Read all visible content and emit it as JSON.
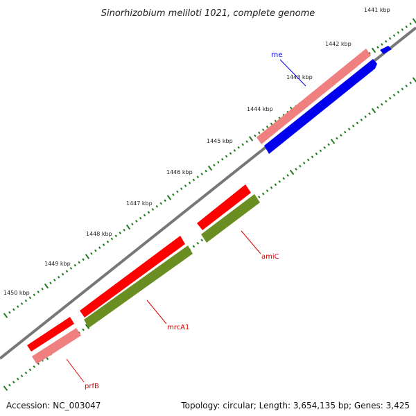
{
  "title": "Sinorhizobium meliloti 1021, complete genome",
  "footer": {
    "accession": "Accession: NC_003047",
    "summary": "Topology: circular; Length: 3,654,135 bp; Genes: 3,425"
  },
  "kbp_labels": [
    "1441 kbp",
    "1442 kbp",
    "1443 kbp",
    "1444 kbp",
    "1445 kbp",
    "1446 kbp",
    "1447 kbp",
    "1448 kbp",
    "1449 kbp",
    "1450 kbp"
  ],
  "genes": [
    {
      "name": "rne",
      "color": "#0000ee"
    },
    {
      "name": "amiC",
      "color": "#dd0000"
    },
    {
      "name": "mrcA1",
      "color": "#dd0000"
    },
    {
      "name": "prfB",
      "color": "#dd0000"
    }
  ],
  "colors": {
    "backbone": "#777777",
    "tick": "#1a7a1a",
    "cds": "#ff0000",
    "cds_light": "#f08080",
    "gene_blue": "#0000ee",
    "gene_green": "#6b8e23"
  }
}
